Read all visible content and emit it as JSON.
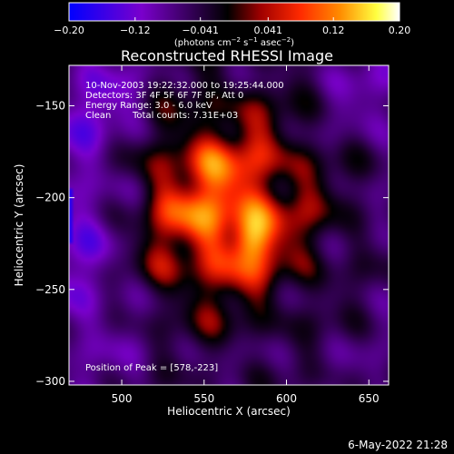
{
  "chart_data": {
    "type": "heatmap",
    "title": "Reconstructed RHESSI Image",
    "xlabel": "Heliocentric X (arcsec)",
    "ylabel": "Heliocentric Y (arcsec)",
    "xlim": [
      468,
      662
    ],
    "ylim": [
      -302,
      -128
    ],
    "xticks": [
      500,
      550,
      600,
      650
    ],
    "yticks": [
      -150,
      -200,
      -250,
      -300
    ],
    "xtick_labels": [
      "500",
      "550",
      "600",
      "650"
    ],
    "ytick_labels": [
      "−150",
      "−200",
      "−250",
      "−300"
    ],
    "colorbar": {
      "range": [
        -0.2,
        0.2
      ],
      "ticks": [
        -0.2,
        -0.12,
        -0.041,
        0.041,
        0.12,
        0.2
      ],
      "tick_labels": [
        "−0.20",
        "−0.12",
        "−0.041",
        "0.041",
        "0.12",
        "0.20"
      ],
      "colormap": [
        "#0000ff",
        "#8000c0",
        "#000000",
        "#a00000",
        "#ff3000",
        "#ff9000",
        "#ffff60",
        "#ffffff"
      ]
    },
    "peak": {
      "x": 578,
      "y": -223
    },
    "grid": false
  },
  "annotations": {
    "time_range": "10-Nov-2003 19:22:32.000 to 19:25:44.000",
    "detectors": "Detectors: 3F 4F 5F 6F 7F 8F, Att 0",
    "energy": "Energy Range: 3.0 - 6.0 keV",
    "clean_label": "Clean",
    "total_counts": "Total counts: 7.31E+03",
    "peak_position": "Position of Peak = [578,-223]"
  },
  "colorbar_units": {
    "pre": "(photons cm",
    "exp1": "−2",
    "mid1": " s",
    "exp2": "−1",
    "mid2": " asec",
    "exp3": "−2",
    "post": ")"
  },
  "footer_date": "6-May-2022 21:28"
}
